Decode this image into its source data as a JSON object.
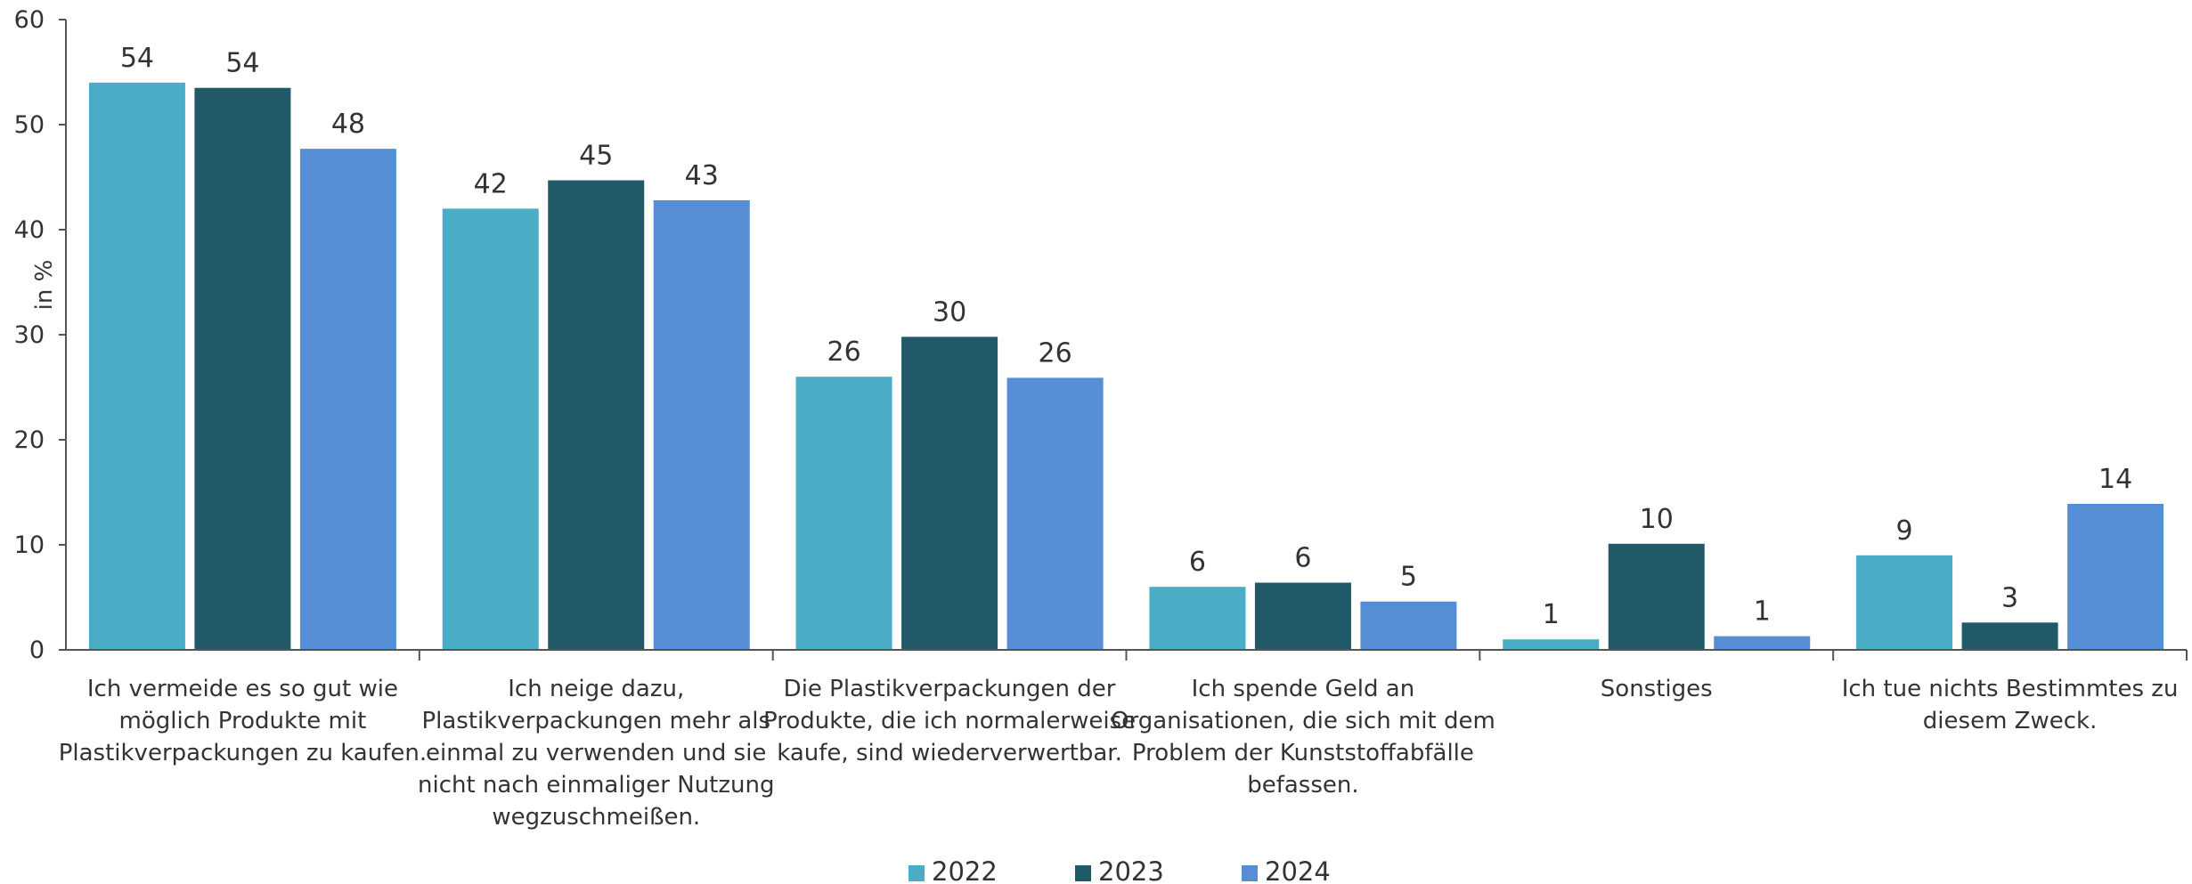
{
  "chart_data": {
    "type": "bar",
    "ylabel": "in %",
    "ylim": [
      0,
      60
    ],
    "yticks": [
      0,
      10,
      20,
      30,
      40,
      50,
      60
    ],
    "legend_position": "bottom",
    "categories": [
      [
        "Ich vermeide es so gut wie",
        "möglich Produkte mit",
        "Plastikverpackungen zu kaufen."
      ],
      [
        "Ich neige dazu,",
        "Plastikverpackungen mehr als",
        "einmal zu verwenden und sie",
        "nicht nach einmaliger Nutzung",
        "wegzuschmeißen."
      ],
      [
        "Die Plastikverpackungen der",
        "Produkte, die ich normalerweise",
        "kaufe, sind wiederverwertbar."
      ],
      [
        "Ich spende Geld an",
        "Organisationen, die sich mit dem",
        "Problem der Kunststoffabfälle",
        "befassen."
      ],
      [
        "Sonstiges"
      ],
      [
        "Ich tue nichts Bestimmtes zu",
        "diesem Zweck."
      ]
    ],
    "series": [
      {
        "name": "2022",
        "color": "#4BACC6",
        "values": [
          54,
          42,
          26,
          6,
          1,
          9
        ]
      },
      {
        "name": "2023",
        "color": "#215968",
        "values": [
          53.5,
          44.7,
          29.8,
          6.4,
          10.1,
          2.6
        ]
      },
      {
        "name": "2024",
        "color": "#558ED5",
        "values": [
          47.7,
          42.8,
          25.9,
          4.6,
          1.3,
          13.9
        ]
      }
    ],
    "data_labels": [
      [
        "54",
        "42",
        "26",
        "6",
        "1",
        "9"
      ],
      [
        "54",
        "45",
        "30",
        "6",
        "10",
        "3"
      ],
      [
        "48",
        "43",
        "26",
        "5",
        "1",
        "14"
      ]
    ]
  }
}
